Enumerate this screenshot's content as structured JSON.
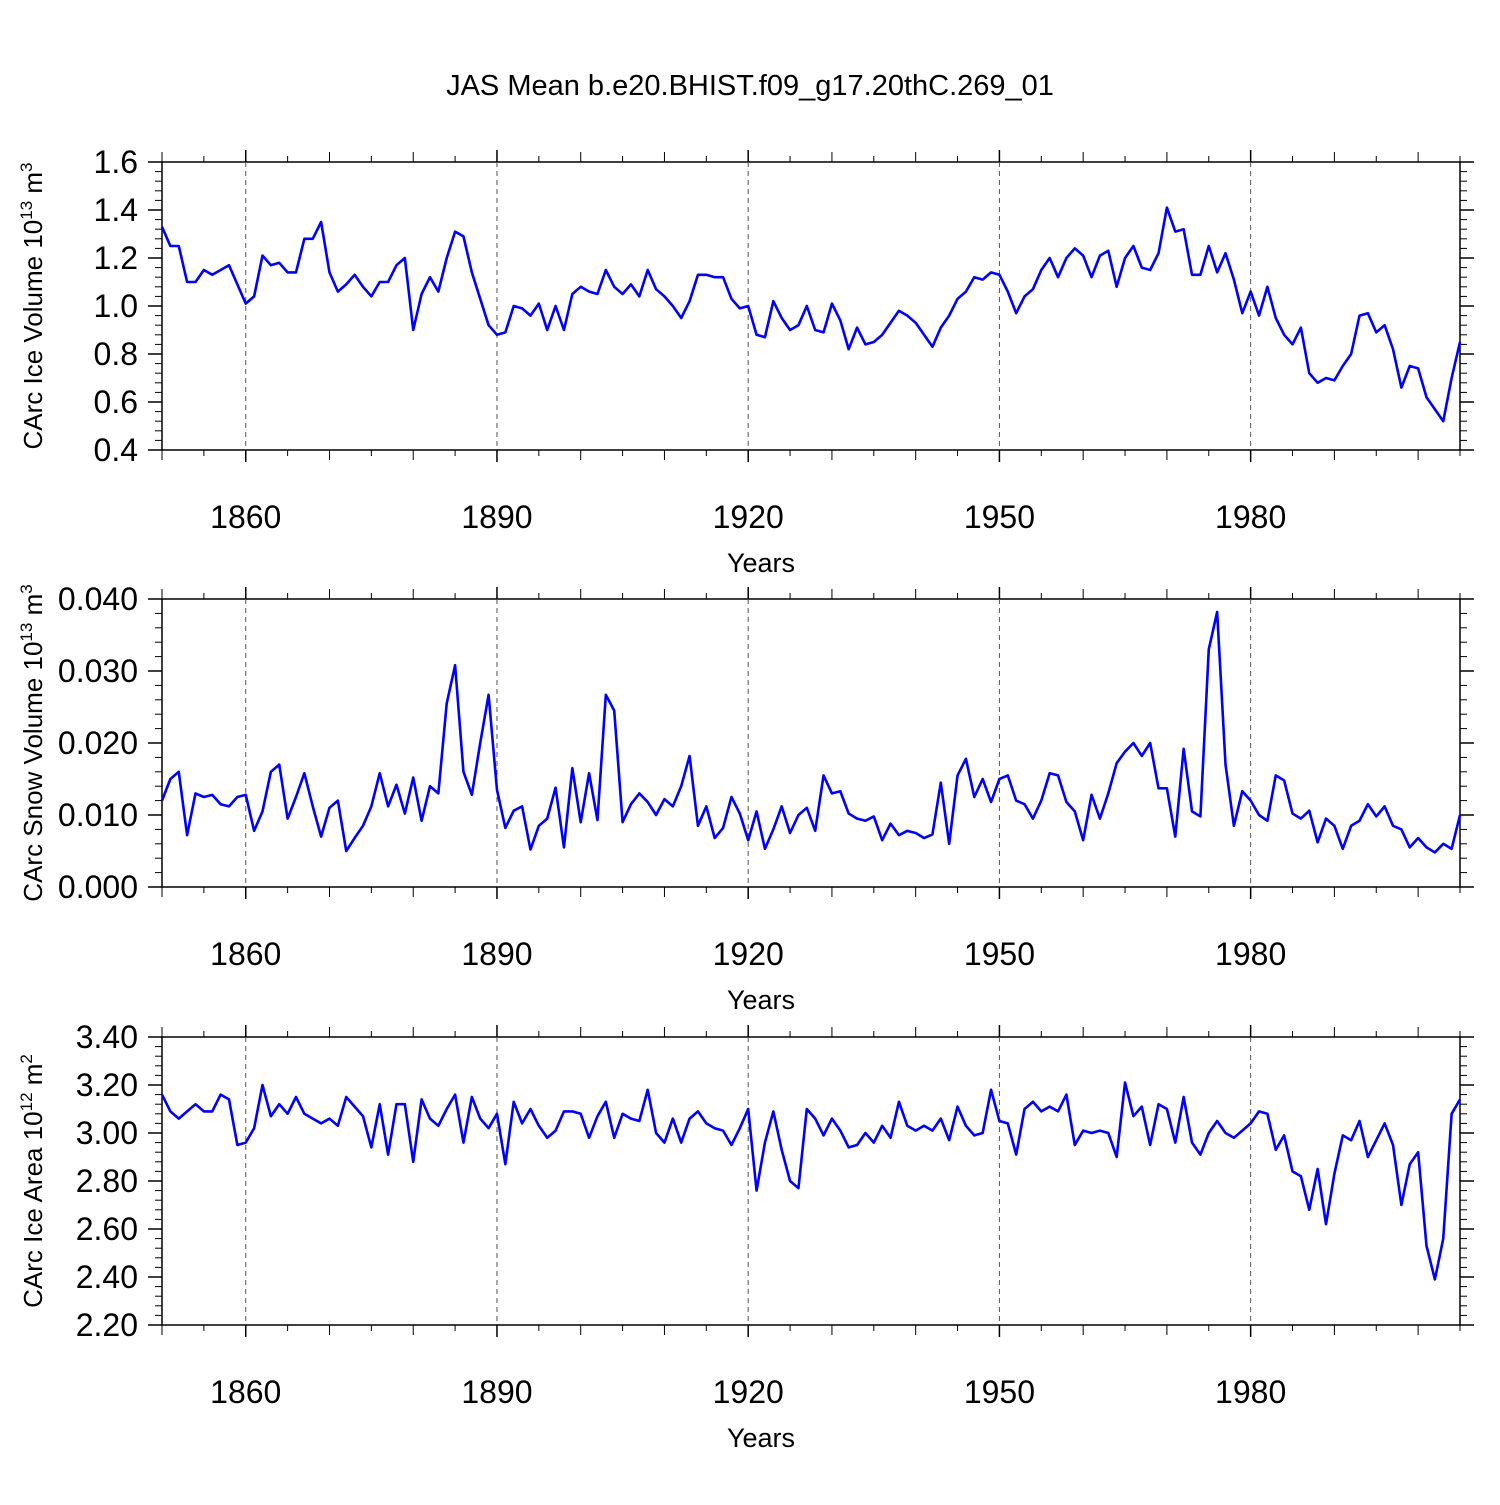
{
  "title": "JAS Mean b.e20.BHIST.f09_g17.20thC.269_01",
  "colors": {
    "series": "#0000ff",
    "axes": "#000000",
    "grid": "#555555"
  },
  "chart_data": [
    {
      "type": "line",
      "title": "JAS Mean b.e20.BHIST.f09_g17.20thC.269_01",
      "xlabel": "Years",
      "ylabel": "CArc Ice Volume 10",
      "ylabel_exp": "13",
      "ylabel_unit": " m",
      "ylabel_unit_exp": "3",
      "xlim": [
        1850,
        2005
      ],
      "ylim": [
        0.4,
        1.6
      ],
      "x_ticks": [
        "1860",
        "1890",
        "1920",
        "1950",
        "1980"
      ],
      "y_ticks": [
        "0.4",
        "0.6",
        "0.8",
        "1.0",
        "1.2",
        "1.4",
        "1.6"
      ],
      "grid": "dashed vertical at major x ticks",
      "x_start": 1850,
      "values": [
        1.33,
        1.25,
        1.25,
        1.1,
        1.1,
        1.15,
        1.13,
        1.15,
        1.17,
        1.09,
        1.01,
        1.04,
        1.21,
        1.17,
        1.18,
        1.14,
        1.14,
        1.28,
        1.28,
        1.35,
        1.14,
        1.06,
        1.09,
        1.13,
        1.08,
        1.04,
        1.1,
        1.1,
        1.17,
        1.2,
        0.9,
        1.05,
        1.12,
        1.06,
        1.2,
        1.31,
        1.29,
        1.14,
        1.03,
        0.92,
        0.88,
        0.89,
        1.0,
        0.99,
        0.96,
        1.01,
        0.9,
        1.0,
        0.9,
        1.05,
        1.08,
        1.06,
        1.05,
        1.15,
        1.08,
        1.05,
        1.09,
        1.04,
        1.15,
        1.07,
        1.04,
        1.0,
        0.95,
        1.02,
        1.13,
        1.13,
        1.12,
        1.12,
        1.03,
        0.99,
        1.0,
        0.88,
        0.87,
        1.02,
        0.95,
        0.9,
        0.92,
        1.0,
        0.9,
        0.89,
        1.01,
        0.94,
        0.82,
        0.91,
        0.84,
        0.85,
        0.88,
        0.93,
        0.98,
        0.96,
        0.93,
        0.88,
        0.83,
        0.91,
        0.96,
        1.03,
        1.06,
        1.12,
        1.11,
        1.14,
        1.13,
        1.06,
        0.97,
        1.04,
        1.07,
        1.15,
        1.2,
        1.12,
        1.2,
        1.24,
        1.21,
        1.12,
        1.21,
        1.23,
        1.08,
        1.2,
        1.25,
        1.16,
        1.15,
        1.22,
        1.41,
        1.31,
        1.32,
        1.13,
        1.13,
        1.25,
        1.14,
        1.22,
        1.11,
        0.97,
        1.06,
        0.96,
        1.08,
        0.95,
        0.88,
        0.84,
        0.91,
        0.72,
        0.68,
        0.7,
        0.69,
        0.75,
        0.8,
        0.96,
        0.97,
        0.89,
        0.92,
        0.82,
        0.66,
        0.75,
        0.74,
        0.62,
        0.57,
        0.52,
        0.7,
        0.85
      ]
    },
    {
      "type": "line",
      "title": "",
      "xlabel": "Years",
      "ylabel": "CArc Snow Volume 10",
      "ylabel_exp": "13",
      "ylabel_unit": " m",
      "ylabel_unit_exp": "3",
      "xlim": [
        1850,
        2005
      ],
      "ylim": [
        0.0,
        0.04
      ],
      "x_ticks": [
        "1860",
        "1890",
        "1920",
        "1950",
        "1980"
      ],
      "y_ticks": [
        "0.000",
        "0.010",
        "0.020",
        "0.030",
        "0.040"
      ],
      "grid": "dashed vertical at major x ticks",
      "x_start": 1850,
      "values": [
        0.012,
        0.015,
        0.016,
        0.0072,
        0.013,
        0.0125,
        0.0128,
        0.0115,
        0.0112,
        0.0125,
        0.0128,
        0.0078,
        0.0105,
        0.016,
        0.017,
        0.0095,
        0.0125,
        0.0158,
        0.0112,
        0.007,
        0.011,
        0.012,
        0.005,
        0.0068,
        0.0085,
        0.0112,
        0.0158,
        0.0112,
        0.0142,
        0.0102,
        0.0152,
        0.0092,
        0.014,
        0.013,
        0.0255,
        0.0308,
        0.016,
        0.0128,
        0.02,
        0.0267,
        0.0135,
        0.0082,
        0.0106,
        0.0112,
        0.0052,
        0.0085,
        0.0095,
        0.0138,
        0.0055,
        0.0165,
        0.009,
        0.0158,
        0.0093,
        0.0267,
        0.0245,
        0.009,
        0.0115,
        0.013,
        0.0118,
        0.01,
        0.0122,
        0.0112,
        0.014,
        0.0182,
        0.0085,
        0.0112,
        0.0068,
        0.0082,
        0.0125,
        0.0102,
        0.0065,
        0.0105,
        0.0053,
        0.008,
        0.0112,
        0.0075,
        0.01,
        0.011,
        0.0078,
        0.0155,
        0.013,
        0.0133,
        0.0102,
        0.0095,
        0.0092,
        0.0098,
        0.0065,
        0.0088,
        0.0072,
        0.0078,
        0.0075,
        0.0068,
        0.0073,
        0.0145,
        0.006,
        0.0155,
        0.0178,
        0.0125,
        0.015,
        0.0118,
        0.015,
        0.0155,
        0.012,
        0.0115,
        0.0095,
        0.012,
        0.0158,
        0.0155,
        0.0118,
        0.0105,
        0.0065,
        0.0128,
        0.0095,
        0.013,
        0.0172,
        0.0188,
        0.02,
        0.0182,
        0.02,
        0.0137,
        0.0137,
        0.007,
        0.0192,
        0.0105,
        0.0098,
        0.033,
        0.0382,
        0.017,
        0.0085,
        0.0133,
        0.012,
        0.01,
        0.0092,
        0.0155,
        0.0148,
        0.0102,
        0.0095,
        0.0106,
        0.0062,
        0.0095,
        0.0085,
        0.0053,
        0.0085,
        0.0092,
        0.0115,
        0.0098,
        0.0112,
        0.0085,
        0.008,
        0.0055,
        0.0068,
        0.0055,
        0.0048,
        0.006,
        0.0053,
        0.01
      ]
    },
    {
      "type": "line",
      "title": "",
      "xlabel": "Years",
      "ylabel": "CArc Ice Area 10",
      "ylabel_exp": "12",
      "ylabel_unit": " m",
      "ylabel_unit_exp": "2",
      "xlim": [
        1850,
        2005
      ],
      "ylim": [
        2.2,
        3.4
      ],
      "x_ticks": [
        "1860",
        "1890",
        "1920",
        "1950",
        "1980"
      ],
      "y_ticks": [
        "2.20",
        "2.40",
        "2.60",
        "2.80",
        "3.00",
        "3.20",
        "3.40"
      ],
      "grid": "dashed vertical at major x ticks",
      "x_start": 1850,
      "values": [
        3.16,
        3.09,
        3.06,
        3.09,
        3.12,
        3.09,
        3.09,
        3.16,
        3.14,
        2.95,
        2.96,
        3.02,
        3.2,
        3.07,
        3.12,
        3.08,
        3.15,
        3.08,
        3.06,
        3.04,
        3.06,
        3.03,
        3.15,
        3.11,
        3.07,
        2.94,
        3.12,
        2.91,
        3.12,
        3.12,
        2.88,
        3.14,
        3.06,
        3.03,
        3.1,
        3.16,
        2.96,
        3.15,
        3.06,
        3.02,
        3.08,
        2.87,
        3.13,
        3.04,
        3.1,
        3.03,
        2.98,
        3.01,
        3.09,
        3.09,
        3.08,
        2.98,
        3.07,
        3.13,
        2.98,
        3.08,
        3.06,
        3.05,
        3.18,
        3.0,
        2.96,
        3.06,
        2.96,
        3.06,
        3.09,
        3.04,
        3.02,
        3.01,
        2.95,
        3.02,
        3.1,
        2.76,
        2.96,
        3.09,
        2.93,
        2.8,
        2.77,
        3.1,
        3.06,
        2.99,
        3.06,
        3.01,
        2.94,
        2.95,
        3.0,
        2.96,
        3.03,
        2.98,
        3.13,
        3.03,
        3.01,
        3.03,
        3.01,
        3.06,
        2.97,
        3.11,
        3.03,
        2.99,
        3.0,
        3.18,
        3.05,
        3.04,
        2.91,
        3.1,
        3.13,
        3.09,
        3.11,
        3.09,
        3.16,
        2.95,
        3.01,
        3.0,
        3.01,
        3.0,
        2.9,
        3.21,
        3.07,
        3.11,
        2.95,
        3.12,
        3.1,
        2.96,
        3.15,
        2.96,
        2.91,
        3.0,
        3.05,
        3.0,
        2.98,
        3.01,
        3.04,
        3.09,
        3.08,
        2.93,
        2.99,
        2.84,
        2.82,
        2.68,
        2.85,
        2.62,
        2.83,
        2.99,
        2.97,
        3.05,
        2.9,
        2.97,
        3.04,
        2.95,
        2.7,
        2.87,
        2.92,
        2.53,
        2.39,
        2.56,
        3.08,
        3.14
      ]
    }
  ]
}
